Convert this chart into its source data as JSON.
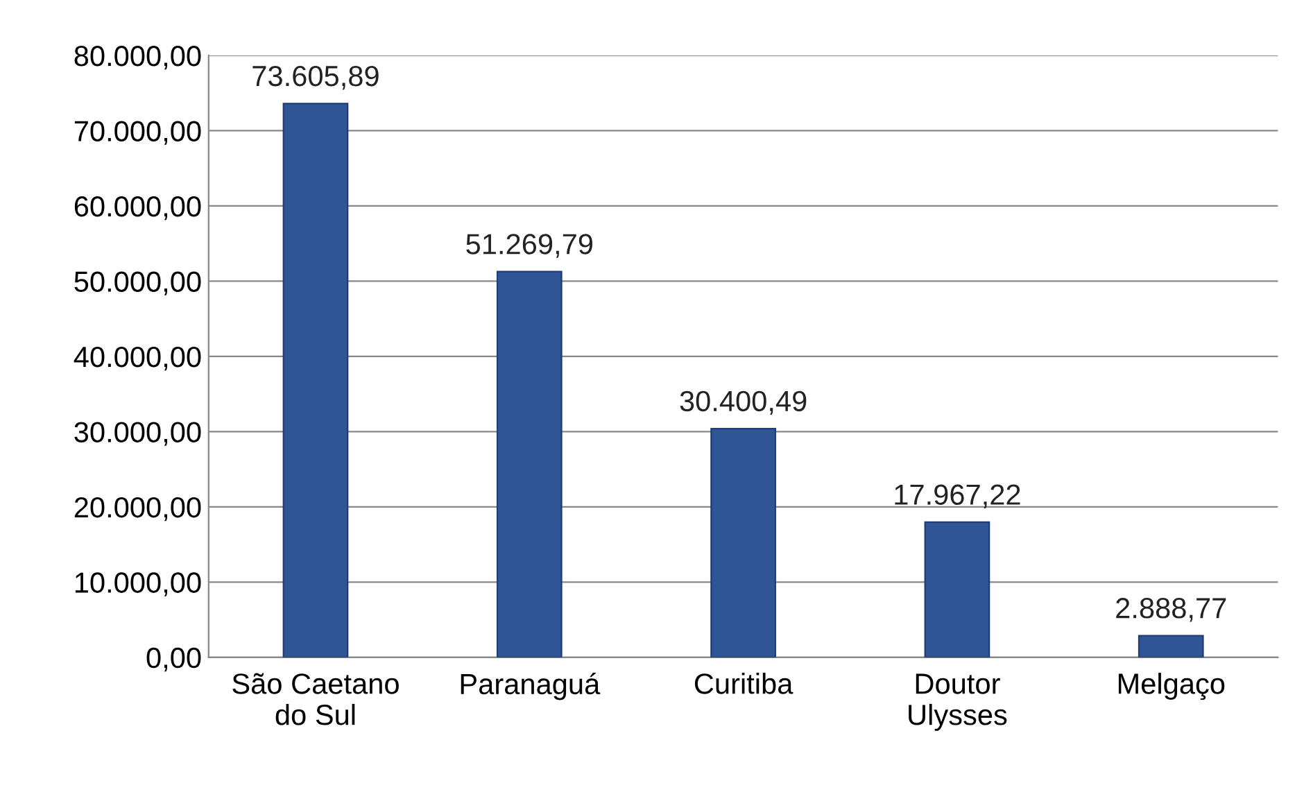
{
  "chart_data": {
    "type": "bar",
    "categories": [
      "São Caetano\ndo Sul",
      "Paranaguá",
      "Curitiba",
      "Doutor\nUlysses",
      "Melgaço"
    ],
    "values": [
      73605.89,
      51269.79,
      30400.49,
      17967.22,
      2888.77
    ],
    "value_labels": [
      "73.605,89",
      "51.269,79",
      "30.400,49",
      "17.967,22",
      "2.888,77"
    ],
    "color": "#2f5597",
    "ylim": [
      0,
      80000
    ],
    "yticks": [
      {
        "value": 0,
        "label": "0,00"
      },
      {
        "value": 10000,
        "label": "10.000,00"
      },
      {
        "value": 20000,
        "label": "20.000,00"
      },
      {
        "value": 30000,
        "label": "30.000,00"
      },
      {
        "value": 40000,
        "label": "40.000,00"
      },
      {
        "value": 50000,
        "label": "50.000,00"
      },
      {
        "value": 60000,
        "label": "60.000,00"
      },
      {
        "value": 70000,
        "label": "70.000,00"
      },
      {
        "value": 80000,
        "label": "80.000,00"
      }
    ],
    "grid": "y"
  }
}
